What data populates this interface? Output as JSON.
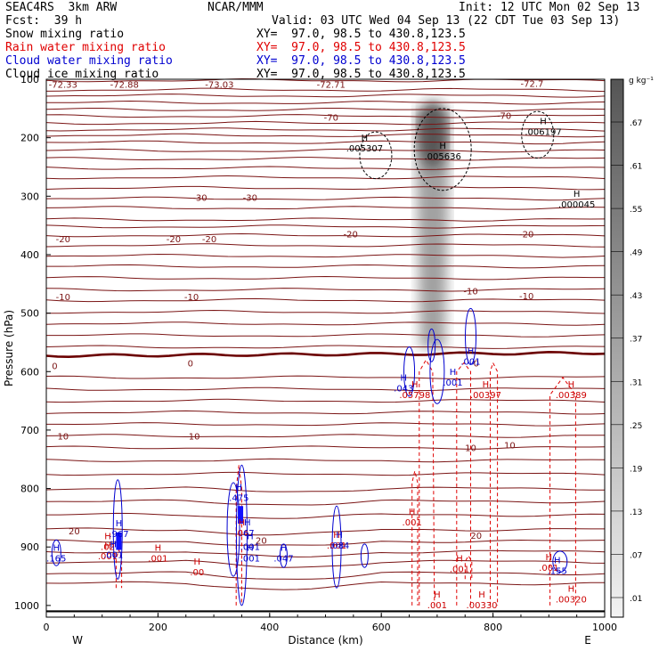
{
  "header": {
    "model": "SEAC4RS  3km ARW",
    "org": "NCAR/MMM",
    "init": "Init: 12 UTC Mon 02 Sep 13",
    "fcst": "Fcst:  39 h",
    "valid": "Valid: 03 UTC Wed 04 Sep 13 (22 CDT Tue 03 Sep 13)"
  },
  "fields": [
    {
      "name": "Snow mixing ratio",
      "xy": "XY=  97.0, 98.5 to 430.8,123.5",
      "color": "#000000"
    },
    {
      "name": "Rain water mixing ratio",
      "xy": "XY=  97.0, 98.5 to 430.8,123.5",
      "color": "#e00000"
    },
    {
      "name": "Cloud water mixing ratio",
      "xy": "XY=  97.0, 98.5 to 430.8,123.5",
      "color": "#0000d0"
    },
    {
      "name": "Cloud ice mixing ratio",
      "xy": "XY=  97.0, 98.5 to 430.8,123.5",
      "color": "#000000"
    }
  ],
  "colorbar": {
    "unit": "g kg⁻¹",
    "labels": [
      ".67",
      ".61",
      ".55",
      ".49",
      ".43",
      ".37",
      ".31",
      ".25",
      ".19",
      ".13",
      ".07",
      ".01"
    ]
  },
  "chart_data": {
    "type": "cross-section",
    "xlabel": "Distance (km)",
    "ylabel": "Pressure (hPa)",
    "xlim": [
      0,
      1000
    ],
    "ylim": [
      1020,
      100
    ],
    "x_ticks": [
      "0",
      "200",
      "400",
      "600",
      "800",
      "1000"
    ],
    "y_ticks": [
      "100",
      "200",
      "300",
      "400",
      "500",
      "600",
      "700",
      "800",
      "900",
      "1000"
    ],
    "left_end": "W",
    "right_end": "E",
    "temperature_isotherm_labels": [
      {
        "x": 30,
        "p": 108,
        "label": "-72.33"
      },
      {
        "x": 140,
        "p": 108,
        "label": "-72.88"
      },
      {
        "x": 310,
        "p": 108,
        "label": "-73.03"
      },
      {
        "x": 510,
        "p": 108,
        "label": "-72.71"
      },
      {
        "x": 870,
        "p": 107,
        "label": "-72.7"
      },
      {
        "x": 510,
        "p": 165,
        "label": "-70"
      },
      {
        "x": 820,
        "p": 162,
        "label": "-70"
      },
      {
        "x": 275,
        "p": 302,
        "label": "-30"
      },
      {
        "x": 365,
        "p": 302,
        "label": "-30"
      },
      {
        "x": 30,
        "p": 373,
        "label": "-20"
      },
      {
        "x": 228,
        "p": 373,
        "label": "-20"
      },
      {
        "x": 292,
        "p": 373,
        "label": "-20"
      },
      {
        "x": 545,
        "p": 364,
        "label": "-20"
      },
      {
        "x": 860,
        "p": 364,
        "label": "-20"
      },
      {
        "x": 30,
        "p": 472,
        "label": "-10"
      },
      {
        "x": 260,
        "p": 472,
        "label": "-10"
      },
      {
        "x": 760,
        "p": 462,
        "label": "-10"
      },
      {
        "x": 860,
        "p": 470,
        "label": "-10"
      },
      {
        "x": 15,
        "p": 590,
        "label": "0"
      },
      {
        "x": 258,
        "p": 585,
        "label": "0"
      },
      {
        "x": 770,
        "p": 585,
        "label": "0"
      },
      {
        "x": 30,
        "p": 710,
        "label": "10"
      },
      {
        "x": 265,
        "p": 710,
        "label": "10"
      },
      {
        "x": 760,
        "p": 730,
        "label": "10"
      },
      {
        "x": 830,
        "p": 725,
        "label": "10"
      },
      {
        "x": 50,
        "p": 872,
        "label": "20"
      },
      {
        "x": 385,
        "p": 888,
        "label": "20"
      },
      {
        "x": 770,
        "p": 880,
        "label": "20"
      }
    ],
    "max_labels": [
      {
        "x": 570,
        "p": 220,
        "label": ".005307",
        "color": "#000000"
      },
      {
        "x": 710,
        "p": 234,
        "label": ".005636",
        "color": "#000000"
      },
      {
        "x": 890,
        "p": 192,
        "label": ".006197",
        "color": "#000000"
      },
      {
        "x": 950,
        "p": 316,
        "label": ".000045",
        "color": "#000000"
      },
      {
        "x": 660,
        "p": 642,
        "label": ".05798",
        "color": "#cc0000"
      },
      {
        "x": 787,
        "p": 642,
        "label": ".00397",
        "color": "#cc0000"
      },
      {
        "x": 940,
        "p": 642,
        "label": ".00389",
        "color": "#cc0000"
      },
      {
        "x": 655,
        "p": 860,
        "label": ".001",
        "color": "#cc0000"
      },
      {
        "x": 740,
        "p": 940,
        "label": ".001",
        "color": "#cc0000"
      },
      {
        "x": 700,
        "p": 1002,
        "label": ".001",
        "color": "#cc0000"
      },
      {
        "x": 780,
        "p": 1002,
        "label": ".00330",
        "color": "#cc0000"
      },
      {
        "x": 940,
        "p": 992,
        "label": ".00320",
        "color": "#cc0000"
      },
      {
        "x": 270,
        "p": 945,
        "label": ".00",
        "color": "#cc0000"
      },
      {
        "x": 200,
        "p": 922,
        "label": ".001",
        "color": "#cc0000"
      },
      {
        "x": 110,
        "p": 918,
        "label": ".001",
        "color": "#cc0000"
      },
      {
        "x": 110,
        "p": 902,
        "label": ".02",
        "color": "#cc0000"
      },
      {
        "x": 350,
        "p": 878,
        "label": ".04",
        "color": "#cc0000"
      },
      {
        "x": 900,
        "p": 938,
        "label": ".001",
        "color": "#cc0000"
      },
      {
        "x": 520,
        "p": 900,
        "label": ".001",
        "color": "#cc0000"
      },
      {
        "x": 640,
        "p": 631,
        "label": ".043",
        "color": "#0000cc"
      },
      {
        "x": 728,
        "p": 621,
        "label": ".001",
        "color": "#0000cc"
      },
      {
        "x": 760,
        "p": 585,
        "label": ".001",
        "color": "#0000cc"
      },
      {
        "x": 130,
        "p": 880,
        "label": ".967",
        "color": "#0000cc"
      },
      {
        "x": 345,
        "p": 818,
        "label": ".475",
        "color": "#0000cc"
      },
      {
        "x": 360,
        "p": 878,
        "label": ".67",
        "color": "#0000cc"
      },
      {
        "x": 365,
        "p": 902,
        "label": ".001",
        "color": "#0000cc"
      },
      {
        "x": 365,
        "p": 922,
        "label": ".001",
        "color": "#0000cc"
      },
      {
        "x": 425,
        "p": 922,
        "label": ".047",
        "color": "#0000cc"
      },
      {
        "x": 525,
        "p": 900,
        "label": ".084",
        "color": "#0000cc"
      },
      {
        "x": 120,
        "p": 916,
        "label": ".001",
        "color": "#0000cc"
      },
      {
        "x": 18,
        "p": 922,
        "label": ".165",
        "color": "#0000cc"
      },
      {
        "x": 915,
        "p": 943,
        "label": ".155",
        "color": "#0000cc"
      }
    ]
  }
}
